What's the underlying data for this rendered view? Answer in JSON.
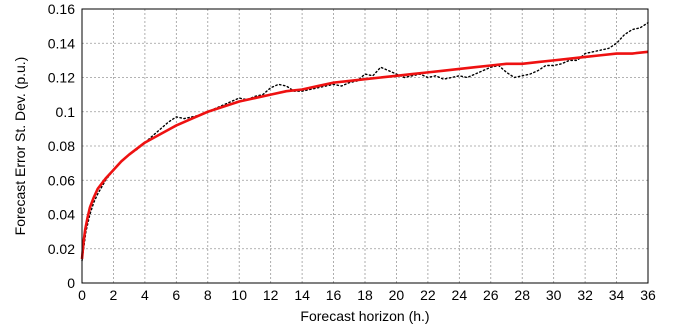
{
  "chart_data": {
    "type": "line",
    "title": "",
    "xlabel": "Forecast horizon (h.)",
    "ylabel": "Forecast Error St. Dev. (p.u.)",
    "xlim": [
      0,
      36
    ],
    "ylim": [
      0,
      0.16
    ],
    "xticks": [
      0,
      2,
      4,
      6,
      8,
      10,
      12,
      14,
      16,
      18,
      20,
      22,
      24,
      26,
      28,
      30,
      32,
      34,
      36
    ],
    "xtick_labels": [
      "0",
      "2",
      "4",
      "6",
      "8",
      "10",
      "12",
      "14",
      "16",
      "18",
      "20",
      "22",
      "24",
      "26",
      "28",
      "30",
      "32",
      "34",
      "36"
    ],
    "yticks": [
      0,
      0.02,
      0.04,
      0.06,
      0.08,
      0.1,
      0.12,
      0.14,
      0.16
    ],
    "ytick_labels": [
      "0",
      "0.02",
      "0.04",
      "0.06",
      "0.08",
      "0.1",
      "0.12",
      "0.14",
      "0.16"
    ],
    "grid": true,
    "legend": "none",
    "series": [
      {
        "style": "dotted",
        "color": "#000000",
        "x": [
          0,
          0.25,
          0.5,
          0.75,
          1,
          1.5,
          2,
          2.5,
          3,
          3.5,
          4,
          4.5,
          5,
          5.5,
          6,
          6.5,
          7,
          7.5,
          8,
          8.5,
          9,
          9.5,
          10,
          10.5,
          11,
          11.5,
          12,
          12.5,
          13,
          13.5,
          14,
          14.5,
          15,
          15.5,
          16,
          16.5,
          17,
          17.5,
          18,
          18.5,
          19,
          19.5,
          20,
          20.5,
          21,
          21.5,
          22,
          22.5,
          23,
          23.5,
          24,
          24.5,
          25,
          25.5,
          26,
          26.5,
          27,
          27.5,
          28,
          28.5,
          29,
          29.5,
          30,
          30.5,
          31,
          31.5,
          32,
          32.5,
          33,
          33.5,
          34,
          34.5,
          35,
          35.5,
          36
        ],
        "values": [
          0.013,
          0.03,
          0.04,
          0.047,
          0.052,
          0.06,
          0.066,
          0.071,
          0.075,
          0.078,
          0.082,
          0.086,
          0.09,
          0.094,
          0.097,
          0.096,
          0.097,
          0.098,
          0.1,
          0.102,
          0.104,
          0.106,
          0.108,
          0.107,
          0.109,
          0.11,
          0.114,
          0.116,
          0.115,
          0.112,
          0.112,
          0.113,
          0.114,
          0.115,
          0.116,
          0.115,
          0.117,
          0.118,
          0.122,
          0.121,
          0.126,
          0.124,
          0.122,
          0.12,
          0.121,
          0.122,
          0.12,
          0.121,
          0.119,
          0.12,
          0.121,
          0.12,
          0.122,
          0.124,
          0.126,
          0.127,
          0.123,
          0.12,
          0.121,
          0.122,
          0.124,
          0.127,
          0.127,
          0.128,
          0.13,
          0.13,
          0.134,
          0.135,
          0.136,
          0.137,
          0.14,
          0.145,
          0.148,
          0.149,
          0.152
        ]
      },
      {
        "style": "solid",
        "color": "#ee1111",
        "x": [
          0,
          0.1,
          0.2,
          0.35,
          0.5,
          0.75,
          1,
          1.5,
          2,
          2.5,
          3,
          4,
          5,
          6,
          7,
          8,
          9,
          10,
          11,
          12,
          13,
          14,
          15,
          16,
          17,
          18,
          19,
          20,
          21,
          22,
          23,
          24,
          25,
          26,
          27,
          28,
          29,
          30,
          31,
          32,
          33,
          34,
          35,
          36
        ],
        "values": [
          0.014,
          0.024,
          0.031,
          0.038,
          0.044,
          0.05,
          0.055,
          0.061,
          0.066,
          0.071,
          0.075,
          0.082,
          0.087,
          0.092,
          0.096,
          0.1,
          0.103,
          0.106,
          0.108,
          0.11,
          0.112,
          0.113,
          0.115,
          0.117,
          0.118,
          0.119,
          0.12,
          0.121,
          0.122,
          0.123,
          0.124,
          0.125,
          0.126,
          0.127,
          0.128,
          0.128,
          0.129,
          0.13,
          0.131,
          0.132,
          0.133,
          0.134,
          0.134,
          0.135
        ]
      }
    ]
  }
}
